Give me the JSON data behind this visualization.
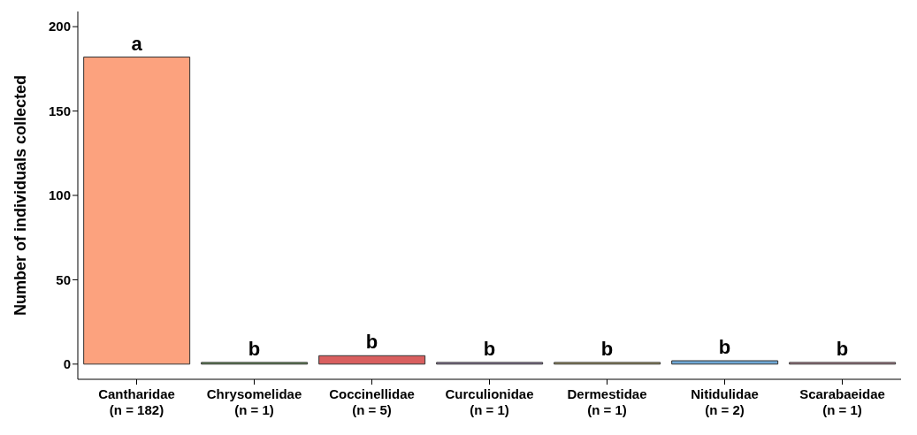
{
  "chart_data": {
    "type": "bar",
    "ylabel": "Number of individuals collected",
    "categories": [
      "Cantharidae\n(n = 182)",
      "Chrysomelidae\n(n = 1)",
      "Coccinellidae\n(n = 5)",
      "Curculionidae\n(n = 1)",
      "Dermestidae\n(n = 1)",
      "Nitidulidae\n(n = 2)",
      "Scarabaeidae\n(n = 1)"
    ],
    "values": [
      182,
      1,
      5,
      1,
      1,
      2,
      1
    ],
    "colors": [
      "#fca27e",
      "#6b9b5b",
      "#d95f5f",
      "#9e88b0",
      "#b5a86a",
      "#6fa8d6",
      "#c58f9c"
    ],
    "ylim": [
      -9,
      209
    ],
    "yticks": [
      0,
      50,
      100,
      150,
      200
    ],
    "grid": false,
    "legend": false,
    "annotations": [
      {
        "text": "a",
        "x": "Cantharidae\n(n = 182)",
        "y": 182
      },
      {
        "text": "b",
        "x": "Chrysomelidae\n(n = 1)",
        "y": 1
      },
      {
        "text": "b",
        "x": "Coccinellidae\n(n = 5)",
        "y": 5
      },
      {
        "text": "b",
        "x": "Curculionidae\n(n = 1)",
        "y": 1
      },
      {
        "text": "b",
        "x": "Dermestidae\n(n = 1)",
        "y": 1
      },
      {
        "text": "b",
        "x": "Nitidulidae\n(n = 2)",
        "y": 2
      },
      {
        "text": "b",
        "x": "Scarabaeidae\n(n = 1)",
        "y": 1
      }
    ]
  }
}
